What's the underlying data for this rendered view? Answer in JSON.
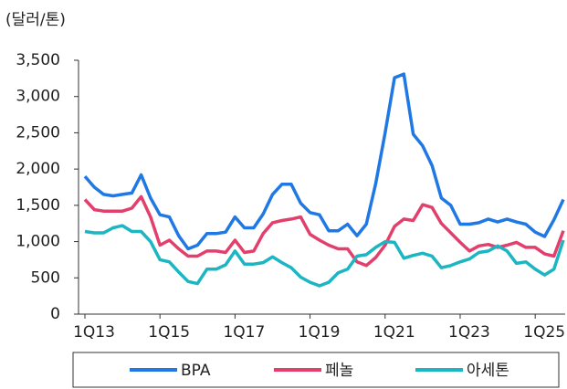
{
  "chart_data": {
    "type": "line",
    "y_label": "(달러/톤)",
    "categories": [
      "1Q13",
      null,
      null,
      null,
      null,
      null,
      null,
      null,
      "1Q15",
      null,
      null,
      null,
      null,
      null,
      null,
      null,
      "1Q17",
      null,
      null,
      null,
      null,
      null,
      null,
      null,
      "1Q19",
      null,
      null,
      null,
      null,
      null,
      null,
      null,
      "1Q21",
      null,
      null,
      null,
      null,
      null,
      null,
      null,
      "1Q23",
      null,
      null,
      null,
      null,
      null,
      null,
      null,
      "1Q25",
      null,
      null,
      null
    ],
    "ylim": [
      0,
      3500
    ],
    "yticks": [
      0,
      500,
      {
        "value": 1000,
        "label": "1,000"
      },
      {
        "value": 1500,
        "label": "1,500"
      },
      {
        "value": 2000,
        "label": "2,000"
      },
      {
        "value": 2500,
        "label": "2,500"
      },
      {
        "value": 3000,
        "label": "3,000"
      },
      {
        "value": 3500,
        "label": "3,500"
      }
    ],
    "series": [
      {
        "name": "BPA",
        "color": "#1f78e3",
        "values": [
          1900,
          1750,
          1650,
          1630,
          1650,
          1670,
          1920,
          1600,
          1370,
          1340,
          1080,
          900,
          950,
          1110,
          1110,
          1130,
          1340,
          1190,
          1190,
          1380,
          1650,
          1790,
          1790,
          1530,
          1400,
          1370,
          1150,
          1150,
          1240,
          1080,
          1240,
          1800,
          2500,
          3260,
          3310,
          2480,
          2320,
          2050,
          1600,
          1500,
          1240,
          1240,
          1260,
          1310,
          1270,
          1310,
          1270,
          1240,
          1130,
          1070,
          1300,
          1580
        ]
      },
      {
        "name": "페놀",
        "color": "#e23f6c",
        "values": [
          1580,
          1440,
          1420,
          1420,
          1420,
          1460,
          1620,
          1340,
          950,
          1020,
          900,
          800,
          800,
          870,
          870,
          850,
          1020,
          850,
          870,
          1110,
          1260,
          1290,
          1310,
          1340,
          1100,
          1020,
          950,
          900,
          900,
          720,
          670,
          780,
          950,
          1210,
          1310,
          1290,
          1510,
          1470,
          1250,
          1120,
          990,
          870,
          940,
          960,
          920,
          950,
          990,
          920,
          920,
          830,
          800,
          1150
        ]
      },
      {
        "name": "아세톤",
        "color": "#1cb5c2",
        "values": [
          1140,
          1120,
          1120,
          1190,
          1220,
          1140,
          1140,
          1000,
          750,
          720,
          580,
          450,
          420,
          620,
          620,
          680,
          870,
          690,
          690,
          710,
          790,
          710,
          640,
          510,
          440,
          390,
          440,
          570,
          620,
          800,
          820,
          920,
          1000,
          990,
          770,
          810,
          840,
          800,
          640,
          670,
          720,
          760,
          850,
          870,
          940,
          870,
          700,
          720,
          620,
          540,
          620,
          1020
        ]
      }
    ]
  }
}
